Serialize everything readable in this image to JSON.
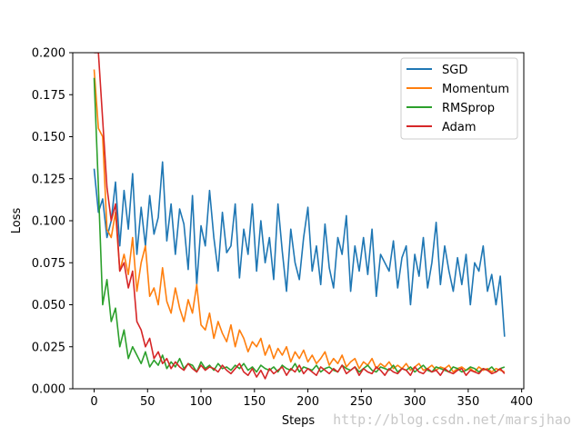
{
  "chart_data": {
    "type": "line",
    "title": "",
    "xlabel": "Steps",
    "ylabel": "Loss",
    "xlim": [
      -20,
      402
    ],
    "ylim": [
      0,
      0.2
    ],
    "xticks": [
      0,
      50,
      100,
      150,
      200,
      250,
      300,
      350,
      400
    ],
    "yticks": [
      0.0,
      0.025,
      0.05,
      0.075,
      0.1,
      0.125,
      0.15,
      0.175,
      0.2
    ],
    "xtick_labels": [
      "0",
      "50",
      "100",
      "150",
      "200",
      "250",
      "300",
      "350",
      "400"
    ],
    "ytick_labels": [
      "0.000",
      "0.025",
      "0.050",
      "0.075",
      "0.100",
      "0.125",
      "0.150",
      "0.175",
      "0.200"
    ],
    "grid": false,
    "legend_position": "top-right",
    "watermark": "http://blog.csdn.net/marsjhao",
    "series": [
      {
        "name": "SGD",
        "color": "#1f77b4",
        "x": [
          0,
          4,
          8,
          12,
          16,
          20,
          24,
          28,
          32,
          36,
          40,
          44,
          48,
          52,
          56,
          60,
          64,
          68,
          72,
          76,
          80,
          84,
          88,
          92,
          96,
          100,
          104,
          108,
          112,
          116,
          120,
          124,
          128,
          132,
          136,
          140,
          144,
          148,
          152,
          156,
          160,
          164,
          168,
          172,
          176,
          180,
          184,
          188,
          192,
          196,
          200,
          204,
          208,
          212,
          216,
          220,
          224,
          228,
          232,
          236,
          240,
          244,
          248,
          252,
          256,
          260,
          264,
          268,
          272,
          276,
          280,
          284,
          288,
          292,
          296,
          300,
          304,
          308,
          312,
          316,
          320,
          324,
          328,
          332,
          336,
          340,
          344,
          348,
          352,
          356,
          360,
          364,
          368,
          372,
          376,
          380,
          384
        ],
        "y": [
          0.131,
          0.105,
          0.113,
          0.09,
          0.1,
          0.123,
          0.085,
          0.118,
          0.095,
          0.128,
          0.08,
          0.108,
          0.085,
          0.115,
          0.092,
          0.102,
          0.135,
          0.088,
          0.11,
          0.08,
          0.107,
          0.098,
          0.071,
          0.115,
          0.062,
          0.097,
          0.085,
          0.118,
          0.09,
          0.07,
          0.105,
          0.081,
          0.085,
          0.11,
          0.066,
          0.095,
          0.08,
          0.11,
          0.07,
          0.1,
          0.075,
          0.09,
          0.065,
          0.11,
          0.082,
          0.058,
          0.095,
          0.075,
          0.065,
          0.09,
          0.108,
          0.07,
          0.085,
          0.062,
          0.098,
          0.072,
          0.06,
          0.09,
          0.08,
          0.103,
          0.058,
          0.085,
          0.07,
          0.09,
          0.068,
          0.095,
          0.055,
          0.08,
          0.075,
          0.07,
          0.088,
          0.06,
          0.078,
          0.085,
          0.05,
          0.08,
          0.067,
          0.09,
          0.06,
          0.075,
          0.099,
          0.062,
          0.085,
          0.07,
          0.058,
          0.078,
          0.062,
          0.08,
          0.05,
          0.075,
          0.07,
          0.085,
          0.058,
          0.068,
          0.05,
          0.067,
          0.031
        ]
      },
      {
        "name": "Momentum",
        "color": "#ff7f0e",
        "x": [
          0,
          4,
          8,
          12,
          16,
          20,
          24,
          28,
          32,
          36,
          40,
          44,
          48,
          52,
          56,
          60,
          64,
          68,
          72,
          76,
          80,
          84,
          88,
          92,
          96,
          100,
          104,
          108,
          112,
          116,
          120,
          124,
          128,
          132,
          136,
          140,
          144,
          148,
          152,
          156,
          160,
          164,
          168,
          172,
          176,
          180,
          184,
          188,
          192,
          196,
          200,
          204,
          208,
          212,
          216,
          220,
          224,
          228,
          232,
          236,
          240,
          244,
          248,
          252,
          256,
          260,
          264,
          268,
          272,
          276,
          280,
          284,
          288,
          292,
          296,
          300,
          304,
          308,
          312,
          316,
          320,
          324,
          328,
          332,
          336,
          340,
          344,
          348,
          352,
          356,
          360,
          364,
          368,
          372,
          376,
          380,
          384
        ],
        "y": [
          0.19,
          0.155,
          0.15,
          0.095,
          0.09,
          0.105,
          0.07,
          0.08,
          0.068,
          0.09,
          0.058,
          0.075,
          0.085,
          0.055,
          0.06,
          0.05,
          0.072,
          0.052,
          0.045,
          0.06,
          0.048,
          0.04,
          0.053,
          0.045,
          0.062,
          0.038,
          0.035,
          0.045,
          0.03,
          0.04,
          0.033,
          0.028,
          0.038,
          0.025,
          0.035,
          0.03,
          0.022,
          0.028,
          0.025,
          0.03,
          0.02,
          0.026,
          0.018,
          0.024,
          0.02,
          0.025,
          0.016,
          0.022,
          0.018,
          0.023,
          0.016,
          0.02,
          0.015,
          0.018,
          0.022,
          0.014,
          0.018,
          0.015,
          0.02,
          0.013,
          0.016,
          0.018,
          0.012,
          0.016,
          0.014,
          0.018,
          0.012,
          0.015,
          0.013,
          0.016,
          0.012,
          0.014,
          0.012,
          0.015,
          0.011,
          0.013,
          0.015,
          0.011,
          0.012,
          0.014,
          0.011,
          0.013,
          0.012,
          0.014,
          0.01,
          0.012,
          0.013,
          0.011,
          0.012,
          0.01,
          0.013,
          0.011,
          0.012,
          0.01,
          0.012,
          0.011,
          0.01
        ]
      },
      {
        "name": "RMSprop",
        "color": "#2ca02c",
        "x": [
          0,
          4,
          8,
          12,
          16,
          20,
          24,
          28,
          32,
          36,
          40,
          44,
          48,
          52,
          56,
          60,
          64,
          68,
          72,
          76,
          80,
          84,
          88,
          92,
          96,
          100,
          104,
          108,
          112,
          116,
          120,
          124,
          128,
          132,
          136,
          140,
          144,
          148,
          152,
          156,
          160,
          164,
          168,
          172,
          176,
          180,
          184,
          188,
          192,
          196,
          200,
          204,
          208,
          212,
          216,
          220,
          224,
          228,
          232,
          236,
          240,
          244,
          248,
          252,
          256,
          260,
          264,
          268,
          272,
          276,
          280,
          284,
          288,
          292,
          296,
          300,
          304,
          308,
          312,
          316,
          320,
          324,
          328,
          332,
          336,
          340,
          344,
          348,
          352,
          356,
          360,
          364,
          368,
          372,
          376,
          380,
          384
        ],
        "y": [
          0.185,
          0.12,
          0.05,
          0.065,
          0.04,
          0.048,
          0.025,
          0.035,
          0.018,
          0.025,
          0.02,
          0.015,
          0.022,
          0.013,
          0.017,
          0.014,
          0.02,
          0.012,
          0.016,
          0.013,
          0.018,
          0.012,
          0.015,
          0.014,
          0.01,
          0.016,
          0.012,
          0.014,
          0.011,
          0.015,
          0.012,
          0.013,
          0.011,
          0.014,
          0.012,
          0.015,
          0.011,
          0.013,
          0.01,
          0.014,
          0.012,
          0.011,
          0.013,
          0.01,
          0.014,
          0.012,
          0.011,
          0.015,
          0.01,
          0.013,
          0.012,
          0.011,
          0.014,
          0.01,
          0.012,
          0.013,
          0.011,
          0.01,
          0.014,
          0.012,
          0.011,
          0.013,
          0.01,
          0.012,
          0.014,
          0.011,
          0.01,
          0.013,
          0.012,
          0.011,
          0.014,
          0.01,
          0.012,
          0.011,
          0.013,
          0.01,
          0.012,
          0.014,
          0.011,
          0.01,
          0.013,
          0.012,
          0.011,
          0.01,
          0.013,
          0.012,
          0.01,
          0.011,
          0.013,
          0.012,
          0.01,
          0.012,
          0.011,
          0.013,
          0.01,
          0.012,
          0.013
        ]
      },
      {
        "name": "Adam",
        "color": "#d62728",
        "x": [
          0,
          4,
          8,
          12,
          16,
          20,
          24,
          28,
          32,
          36,
          40,
          44,
          48,
          52,
          56,
          60,
          64,
          68,
          72,
          76,
          80,
          84,
          88,
          92,
          96,
          100,
          104,
          108,
          112,
          116,
          120,
          124,
          128,
          132,
          136,
          140,
          144,
          148,
          152,
          156,
          160,
          164,
          168,
          172,
          176,
          180,
          184,
          188,
          192,
          196,
          200,
          204,
          208,
          212,
          216,
          220,
          224,
          228,
          232,
          236,
          240,
          244,
          248,
          252,
          256,
          260,
          264,
          268,
          272,
          276,
          280,
          284,
          288,
          292,
          296,
          300,
          304,
          308,
          312,
          316,
          320,
          324,
          328,
          332,
          336,
          340,
          344,
          348,
          352,
          356,
          360,
          364,
          368,
          372,
          376,
          380,
          384
        ],
        "y": [
          0.2,
          0.2,
          0.16,
          0.12,
          0.1,
          0.11,
          0.07,
          0.075,
          0.06,
          0.07,
          0.04,
          0.035,
          0.025,
          0.03,
          0.018,
          0.022,
          0.015,
          0.018,
          0.012,
          0.016,
          0.013,
          0.011,
          0.015,
          0.012,
          0.01,
          0.014,
          0.011,
          0.013,
          0.012,
          0.01,
          0.014,
          0.011,
          0.009,
          0.012,
          0.015,
          0.01,
          0.008,
          0.012,
          0.007,
          0.011,
          0.006,
          0.012,
          0.009,
          0.011,
          0.013,
          0.008,
          0.012,
          0.01,
          0.014,
          0.009,
          0.012,
          0.01,
          0.008,
          0.013,
          0.011,
          0.009,
          0.012,
          0.01,
          0.014,
          0.009,
          0.011,
          0.013,
          0.008,
          0.012,
          0.01,
          0.009,
          0.013,
          0.011,
          0.008,
          0.012,
          0.01,
          0.009,
          0.012,
          0.011,
          0.008,
          0.013,
          0.01,
          0.009,
          0.012,
          0.01,
          0.011,
          0.008,
          0.012,
          0.01,
          0.009,
          0.011,
          0.012,
          0.008,
          0.011,
          0.01,
          0.009,
          0.012,
          0.011,
          0.009,
          0.01,
          0.012,
          0.009
        ]
      }
    ]
  }
}
